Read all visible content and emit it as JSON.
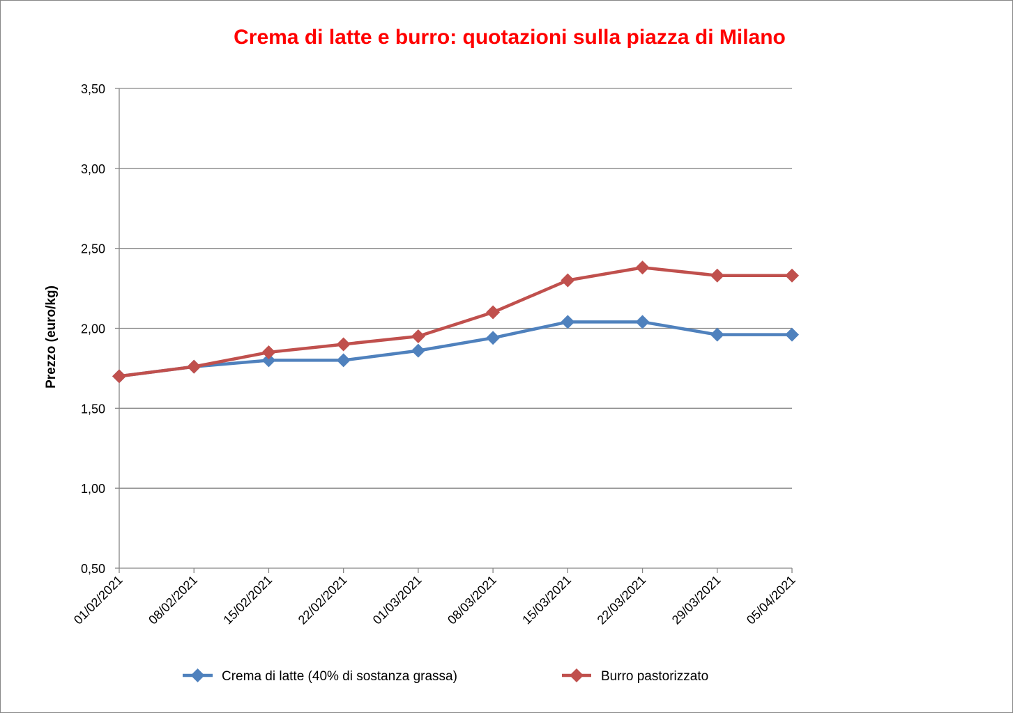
{
  "chart_data": {
    "type": "line",
    "title": "Crema di latte e burro: quotazioni sulla piazza di Milano",
    "title_color": "#FF0000",
    "xlabel": "",
    "ylabel": "Prezzo (euro/kg)",
    "ylim": [
      0.5,
      3.5
    ],
    "yticks": [
      "0,50",
      "1,00",
      "1,50",
      "2,00",
      "2,50",
      "3,00",
      "3,50"
    ],
    "ytick_values": [
      0.5,
      1.0,
      1.5,
      2.0,
      2.5,
      3.0,
      3.5
    ],
    "grid": true,
    "legend_position": "bottom",
    "categories": [
      "01/02/2021",
      "08/02/2021",
      "15/02/2021",
      "22/02/2021",
      "01/03/2021",
      "08/03/2021",
      "15/03/2021",
      "22/03/2021",
      "29/03/2021",
      "05/04/2021"
    ],
    "series": [
      {
        "name": "Crema di latte (40% di sostanza grassa)",
        "color": "#4F81BD",
        "marker": "diamond",
        "values": [
          1.7,
          1.76,
          1.8,
          1.8,
          1.86,
          1.94,
          2.04,
          2.04,
          1.96,
          1.96
        ]
      },
      {
        "name": "Burro pastorizzato",
        "color": "#C0504D",
        "marker": "diamond",
        "values": [
          1.7,
          1.76,
          1.85,
          1.9,
          1.95,
          2.1,
          2.3,
          2.38,
          2.33,
          2.33
        ]
      }
    ]
  }
}
